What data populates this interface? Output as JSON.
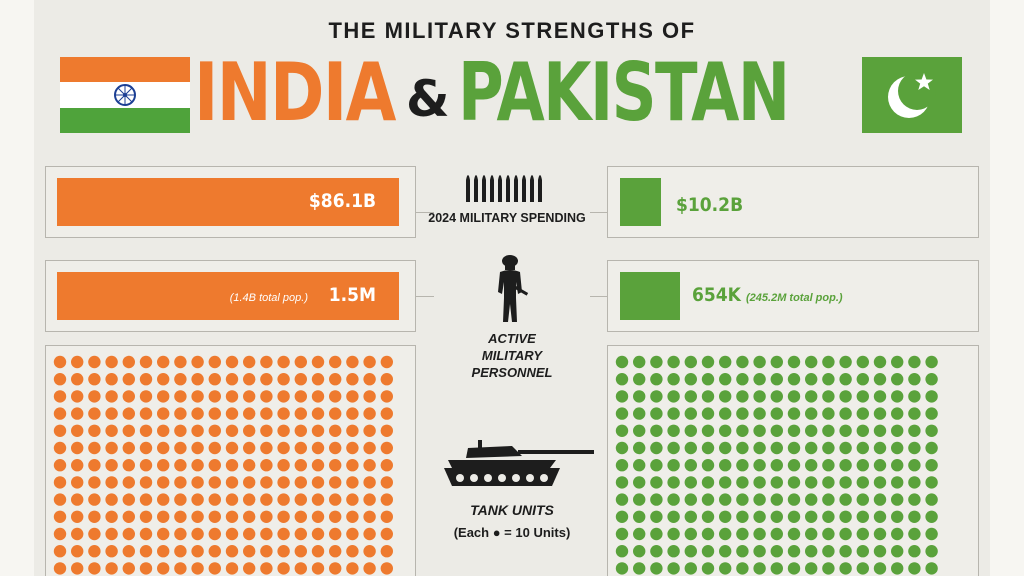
{
  "title": {
    "subtitle": "THE MILITARY STRENGTHS OF",
    "country_a": "INDIA",
    "ampersand": "&",
    "country_b": "PAKISTAN"
  },
  "colors": {
    "india": "#ee7a2e",
    "pakistan": "#5aa23b",
    "background": "#ecebe6"
  },
  "icons": {
    "spending": "ammunition-rounds-icon",
    "personnel": "soldier-icon",
    "tanks": "tank-icon"
  },
  "chart_data": [
    {
      "type": "bar",
      "metric": "2024 MILITARY SPENDING",
      "categories": [
        "INDIA",
        "PAKISTAN"
      ],
      "values": [
        86.1,
        10.2
      ],
      "labels": {
        "india": "$86.1B",
        "pakistan": "$10.2B"
      },
      "unit": "B"
    },
    {
      "type": "bar",
      "metric": "ACTIVE MILITARY PERSONNEL",
      "categories": [
        "INDIA",
        "PAKISTAN"
      ],
      "values": [
        1500000,
        654000
      ],
      "labels": {
        "india": "1.5M",
        "pakistan": "654K"
      },
      "notes": {
        "india": "(1.4B total pop.)",
        "pakistan": "(245.2M total pop.)"
      }
    },
    {
      "type": "dot-matrix",
      "metric": "TANK UNITS",
      "legend": "(Each ● = 10 Units)",
      "units_per_dot": 10,
      "visible_columns": {
        "india": 20,
        "pakistan": 19
      }
    }
  ]
}
